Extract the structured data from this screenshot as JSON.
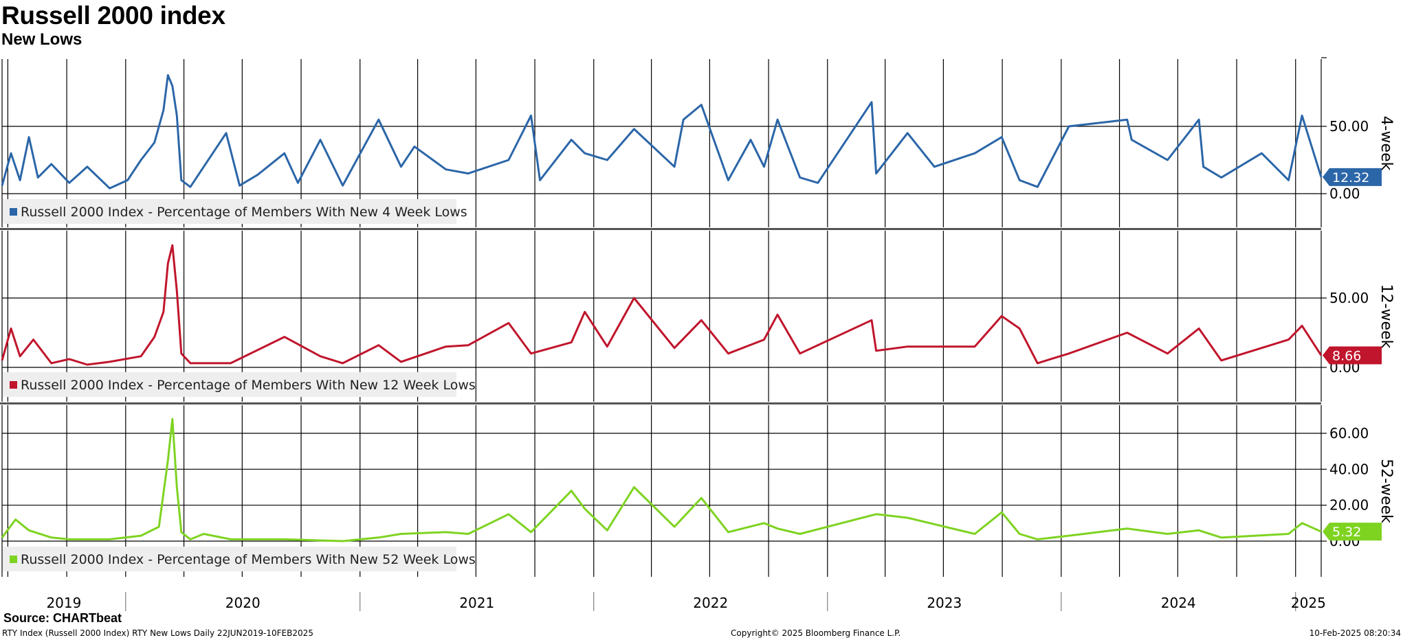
{
  "header": {
    "title": "Russell 2000 index",
    "subtitle": "New Lows"
  },
  "footer": {
    "source": "Source: CHARTbeat",
    "left": "RTY Index (Russell 2000 Index) RTY New Lows  Daily 22JUN2019-10FEB2025",
    "center": "Copyright© 2025 Bloomberg Finance L.P.",
    "right": "10-Feb-2025 08:20:34"
  },
  "colors": {
    "four_week": "#2b66a8",
    "twelve_week": "#c0152c",
    "fifty_two_week": "#7ed321",
    "grid": "#000000",
    "legend_bg": "#eeeeee",
    "panel_divider": "#555555"
  },
  "chart_data": [
    {
      "type": "line",
      "axis_title": "4-week",
      "legend": "Russell 2000 Index - Percentage of Members With New 4 Week Lows",
      "last_value": "12.32",
      "ylim": [
        0,
        95
      ],
      "yticks": [
        "50.00",
        "0.00"
      ],
      "ytick_values": [
        50,
        0
      ],
      "x_start": "2019-06-22",
      "x_end": "2025-02-10",
      "x_year_labels": [
        "2019",
        "2020",
        "2021",
        "2022",
        "2023",
        "2024",
        "2025"
      ],
      "series": [
        {
          "x": [
            "2019-06-22",
            "2019-07-06",
            "2019-07-20",
            "2019-08-03",
            "2019-08-17",
            "2019-09-07",
            "2019-10-05",
            "2019-11-02",
            "2019-12-07",
            "2020-01-04",
            "2020-01-25",
            "2020-02-15",
            "2020-02-29",
            "2020-03-07",
            "2020-03-14",
            "2020-03-21",
            "2020-03-28",
            "2020-04-11",
            "2020-05-02",
            "2020-06-06",
            "2020-06-27",
            "2020-07-25",
            "2020-09-05",
            "2020-09-26",
            "2020-10-31",
            "2020-12-05",
            "2021-01-30",
            "2021-03-06",
            "2021-03-27",
            "2021-05-15",
            "2021-06-19",
            "2021-08-21",
            "2021-09-25",
            "2021-10-09",
            "2021-11-27",
            "2021-12-18",
            "2022-01-22",
            "2022-03-05",
            "2022-05-07",
            "2022-05-21",
            "2022-06-18",
            "2022-07-30",
            "2022-09-03",
            "2022-09-24",
            "2022-10-15",
            "2022-11-19",
            "2022-12-17",
            "2023-03-11",
            "2023-03-18",
            "2023-05-06",
            "2023-06-17",
            "2023-08-19",
            "2023-09-30",
            "2023-10-28",
            "2023-11-25",
            "2024-01-13",
            "2024-04-13",
            "2024-04-20",
            "2024-06-15",
            "2024-08-03",
            "2024-08-10",
            "2024-09-07",
            "2024-11-09",
            "2024-12-21",
            "2025-01-11",
            "2025-02-10"
          ],
          "y": [
            6,
            30,
            10,
            42,
            12,
            22,
            8,
            20,
            4,
            10,
            25,
            38,
            62,
            88,
            80,
            58,
            10,
            5,
            20,
            45,
            6,
            14,
            30,
            8,
            40,
            6,
            55,
            20,
            35,
            18,
            15,
            25,
            58,
            10,
            40,
            30,
            25,
            48,
            20,
            55,
            66,
            10,
            40,
            20,
            55,
            12,
            8,
            68,
            15,
            45,
            20,
            30,
            42,
            10,
            5,
            50,
            55,
            40,
            25,
            55,
            20,
            12,
            30,
            10,
            58,
            12.32
          ]
        }
      ]
    },
    {
      "type": "line",
      "axis_title": "12-week",
      "legend": "Russell 2000 Index - Percentage of Members With New 12 Week Lows",
      "last_value": "8.66",
      "ylim": [
        0,
        95
      ],
      "yticks": [
        "50.00",
        "0.00"
      ],
      "ytick_values": [
        50,
        0
      ],
      "x_start": "2019-06-22",
      "x_end": "2025-02-10",
      "x_year_labels": [
        "2019",
        "2020",
        "2021",
        "2022",
        "2023",
        "2024",
        "2025"
      ],
      "series": [
        {
          "x": [
            "2019-06-22",
            "2019-07-06",
            "2019-07-20",
            "2019-08-10",
            "2019-09-07",
            "2019-10-05",
            "2019-11-02",
            "2019-12-07",
            "2020-01-25",
            "2020-02-15",
            "2020-02-29",
            "2020-03-07",
            "2020-03-14",
            "2020-03-21",
            "2020-03-28",
            "2020-04-11",
            "2020-06-13",
            "2020-09-05",
            "2020-10-31",
            "2020-12-05",
            "2021-01-30",
            "2021-03-06",
            "2021-05-15",
            "2021-06-19",
            "2021-08-21",
            "2021-09-25",
            "2021-11-27",
            "2021-12-18",
            "2022-01-22",
            "2022-03-05",
            "2022-05-07",
            "2022-06-18",
            "2022-07-30",
            "2022-09-24",
            "2022-10-15",
            "2022-11-19",
            "2023-03-11",
            "2023-03-18",
            "2023-05-06",
            "2023-08-19",
            "2023-09-30",
            "2023-10-28",
            "2023-11-25",
            "2024-01-13",
            "2024-04-13",
            "2024-06-15",
            "2024-08-03",
            "2024-09-07",
            "2024-12-21",
            "2025-01-11",
            "2025-02-10"
          ],
          "y": [
            5,
            28,
            8,
            20,
            3,
            6,
            2,
            4,
            8,
            22,
            40,
            75,
            88,
            55,
            10,
            3,
            3,
            22,
            8,
            3,
            16,
            4,
            15,
            16,
            32,
            10,
            18,
            40,
            15,
            50,
            14,
            34,
            10,
            20,
            38,
            10,
            34,
            12,
            15,
            15,
            37,
            28,
            3,
            10,
            25,
            10,
            28,
            5,
            20,
            30,
            8.66
          ]
        }
      ]
    },
    {
      "type": "line",
      "axis_title": "52-week",
      "legend": "Russell 2000 Index - Percentage of Members With New 52 Week Lows",
      "last_value": "5.32",
      "ylim": [
        -12,
        80
      ],
      "yticks": [
        "60.00",
        "40.00",
        "20.00",
        "0.00"
      ],
      "ytick_values": [
        60,
        40,
        20,
        0
      ],
      "x_start": "2019-06-22",
      "x_end": "2025-02-10",
      "x_year_labels": [
        "2019",
        "2020",
        "2021",
        "2022",
        "2023",
        "2024",
        "2025"
      ],
      "series": [
        {
          "x": [
            "2019-06-22",
            "2019-07-13",
            "2019-08-03",
            "2019-09-07",
            "2019-10-05",
            "2019-12-07",
            "2020-01-25",
            "2020-02-22",
            "2020-03-07",
            "2020-03-14",
            "2020-03-21",
            "2020-03-28",
            "2020-04-11",
            "2020-05-02",
            "2020-06-13",
            "2020-09-05",
            "2020-12-05",
            "2021-01-30",
            "2021-03-06",
            "2021-05-15",
            "2021-06-19",
            "2021-08-21",
            "2021-09-25",
            "2021-11-27",
            "2021-12-18",
            "2022-01-22",
            "2022-03-05",
            "2022-05-07",
            "2022-06-18",
            "2022-07-30",
            "2022-09-24",
            "2022-10-15",
            "2022-11-19",
            "2023-03-18",
            "2023-05-06",
            "2023-08-19",
            "2023-09-30",
            "2023-10-28",
            "2023-11-25",
            "2024-01-13",
            "2024-04-13",
            "2024-06-15",
            "2024-08-03",
            "2024-09-07",
            "2024-12-21",
            "2025-01-11",
            "2025-02-10"
          ],
          "y": [
            2,
            12,
            6,
            2,
            1,
            1,
            3,
            8,
            45,
            68,
            30,
            5,
            1,
            4,
            1,
            1,
            0,
            2,
            4,
            5,
            4,
            15,
            5,
            28,
            18,
            6,
            30,
            8,
            24,
            5,
            10,
            7,
            4,
            15,
            13,
            4,
            16,
            4,
            1,
            3,
            7,
            4,
            6,
            2,
            4,
            10,
            5.32
          ]
        }
      ]
    }
  ]
}
